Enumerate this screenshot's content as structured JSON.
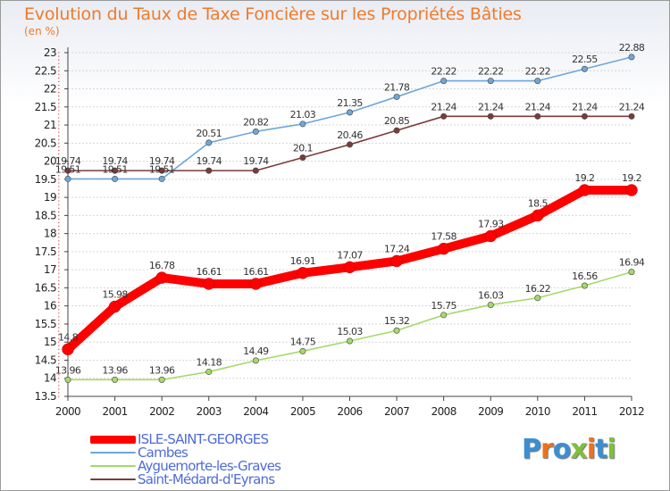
{
  "title": "Evolution du Taux de Taxe Foncière sur les Propriétés Bâties",
  "unit": "(en %)",
  "logo": {
    "text": "Proxiti",
    "colors": [
      "#3b8fd1",
      "#e8731f",
      "#3b8fd1",
      "#7fbf3a",
      "#e8731f",
      "#3b8fd1",
      "#7fbf3a"
    ]
  },
  "chart_data": {
    "type": "line",
    "x": [
      "2000",
      "2001",
      "2002",
      "2003",
      "2004",
      "2005",
      "2006",
      "2007",
      "2008",
      "2009",
      "2010",
      "2011",
      "2012"
    ],
    "ylim": [
      13.5,
      23
    ],
    "yticks": [
      "13.5",
      "14",
      "14.5",
      "15",
      "15.5",
      "16",
      "16.5",
      "17",
      "17.5",
      "18",
      "18.5",
      "19",
      "19.5",
      "20",
      "20.5",
      "21",
      "21.5",
      "22",
      "22.5",
      "23"
    ],
    "grid": "horizontal",
    "legend_position": "bottom-left",
    "series": [
      {
        "name": "ISLE-SAINT-GEORGES",
        "color": "#ff0000",
        "values": [
          14.8,
          15.98,
          16.78,
          16.61,
          16.61,
          16.91,
          17.07,
          17.24,
          17.58,
          17.93,
          18.5,
          19.2,
          19.2
        ],
        "labels": [
          "14.8",
          "15.98",
          "16.78",
          "16.61",
          "16.61",
          "16.91",
          "17.07",
          "17.24",
          "17.58",
          "17.93",
          "18.5",
          "19.2",
          "19.2"
        ]
      },
      {
        "name": "Cambes",
        "color": "#6fa7d8",
        "values": [
          19.51,
          19.51,
          19.51,
          20.51,
          20.82,
          21.03,
          21.35,
          21.78,
          22.22,
          22.22,
          22.22,
          22.55,
          22.88
        ],
        "labels": [
          "19.51",
          "19.51",
          "19.51",
          "20.51",
          "20.82",
          "21.03",
          "21.35",
          "21.78",
          "22.22",
          "22.22",
          "22.22",
          "22.55",
          "22.88"
        ]
      },
      {
        "name": "Ayguemorte-les-Graves",
        "color": "#a6d96a",
        "values": [
          13.96,
          13.96,
          13.96,
          14.18,
          14.49,
          14.75,
          15.03,
          15.32,
          15.75,
          16.03,
          16.22,
          16.56,
          16.94
        ],
        "labels": [
          "13.96",
          "13.96",
          "13.96",
          "14.18",
          "14.49",
          "14.75",
          "15.03",
          "15.32",
          "15.75",
          "16.03",
          "16.22",
          "16.56",
          "16.94"
        ]
      },
      {
        "name": "Saint-Médard-d'Eyrans",
        "color": "#7b3b3b",
        "values": [
          19.74,
          19.74,
          19.74,
          19.74,
          19.74,
          20.1,
          20.46,
          20.85,
          21.24,
          21.24,
          21.24,
          21.24,
          21.24
        ],
        "labels": [
          "19.74",
          "19.74",
          "19.74",
          "19.74",
          "19.74",
          "20.1",
          "20.46",
          "20.85",
          "21.24",
          "21.24",
          "21.24",
          "21.24",
          "21.24"
        ]
      }
    ]
  }
}
